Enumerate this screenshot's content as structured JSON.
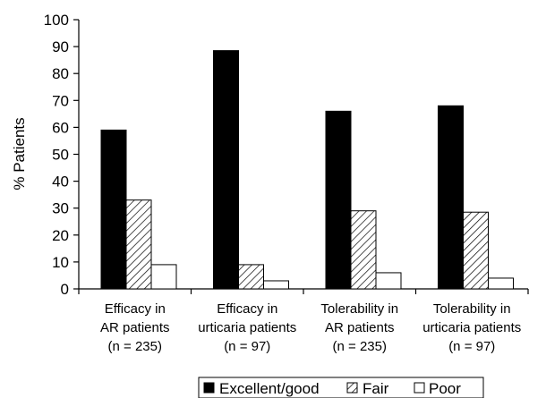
{
  "chart_data": {
    "type": "bar",
    "ylabel": "% Patients",
    "ylim": [
      0,
      100
    ],
    "yticks": [
      0,
      10,
      20,
      30,
      40,
      50,
      60,
      70,
      80,
      90,
      100
    ],
    "categories": [
      [
        "Efficacy in",
        "AR patients",
        "(n = 235)"
      ],
      [
        "Efficacy in",
        "urticaria patients",
        "(n = 97)"
      ],
      [
        "Tolerability in",
        "AR patients",
        "(n = 235)"
      ],
      [
        "Tolerability in",
        "urticaria patients",
        "(n = 97)"
      ]
    ],
    "series": [
      {
        "name": "Excellent/good",
        "style": "solid-black",
        "values": [
          59,
          88.5,
          66,
          68
        ]
      },
      {
        "name": "Fair",
        "style": "hatched",
        "values": [
          33,
          9,
          29,
          28.5
        ]
      },
      {
        "name": "Poor",
        "style": "white",
        "values": [
          9,
          3,
          6,
          4
        ]
      }
    ],
    "legend_position": "bottom",
    "grid": false
  }
}
